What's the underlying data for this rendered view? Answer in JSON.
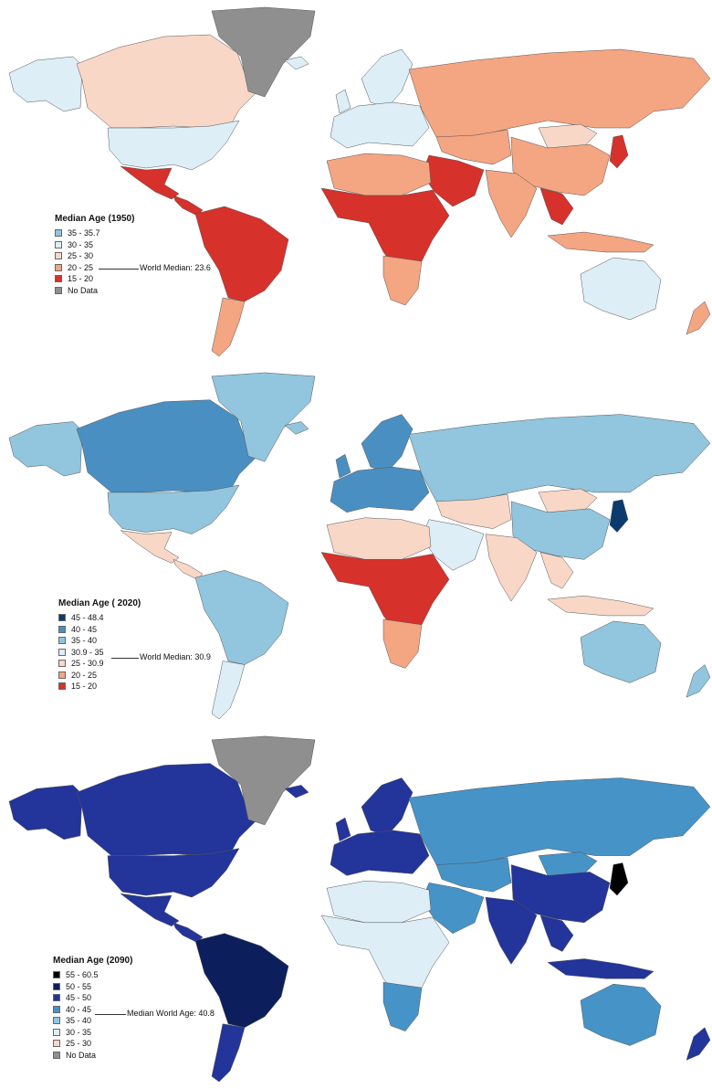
{
  "maps": [
    {
      "legend_title": "Median Age (1950)",
      "median_note": "World Median: 23.6",
      "legend": [
        {
          "label": "35 - 35.7",
          "color": "#92c5de"
        },
        {
          "label": "30 - 35",
          "color": "#ddeef7"
        },
        {
          "label": "25 - 30",
          "color": "#f8d7c7"
        },
        {
          "label": "20 - 25",
          "color": "#f4a582"
        },
        {
          "label": "15 - 20",
          "color": "#d6312b"
        },
        {
          "label": "No Data",
          "color": "#8f8f8f"
        }
      ],
      "region_colors": {
        "north_america": "#f8d7c7",
        "usa": "#ddeef7",
        "alaska": "#ddeef7",
        "greenland": "#8f8f8f",
        "mexico": "#d6312b",
        "central_america": "#d6312b",
        "south_america": "#d6312b",
        "southern_cone": "#f4a582",
        "europe": "#ddeef7",
        "scandinavia": "#ddeef7",
        "russia": "#f4a582",
        "north_africa": "#f4a582",
        "subsaharan_africa": "#d6312b",
        "southern_africa": "#f4a582",
        "middle_east": "#d6312b",
        "central_asia": "#f4a582",
        "south_asia": "#f4a582",
        "china": "#f4a582",
        "mongolia": "#f8d7c7",
        "japan": "#d6312b",
        "southeast_asia": "#d6312b",
        "indonesia": "#f4a582",
        "australia": "#ddeef7",
        "new_zealand": "#f4a582",
        "iceland": "#ddeef7",
        "uk": "#ddeef7"
      }
    },
    {
      "legend_title": "Median Age ( 2020)",
      "median_note": "World Median: 30.9",
      "legend": [
        {
          "label": "45 - 48.4",
          "color": "#0b3a6e"
        },
        {
          "label": "40 - 45",
          "color": "#4a8fc2"
        },
        {
          "label": "35 - 40",
          "color": "#92c5de"
        },
        {
          "label": "30.9 - 35",
          "color": "#ddeef7"
        },
        {
          "label": "25 - 30.9",
          "color": "#f8d7c7"
        },
        {
          "label": "20 - 25",
          "color": "#f4a582"
        },
        {
          "label": "15 - 20",
          "color": "#d6312b"
        }
      ],
      "region_colors": {
        "north_america": "#4a8fc2",
        "usa": "#92c5de",
        "alaska": "#92c5de",
        "greenland": "#92c5de",
        "mexico": "#f8d7c7",
        "central_america": "#f8d7c7",
        "south_america": "#92c5de",
        "southern_cone": "#ddeef7",
        "europe": "#4a8fc2",
        "scandinavia": "#4a8fc2",
        "russia": "#92c5de",
        "north_africa": "#f8d7c7",
        "subsaharan_africa": "#d6312b",
        "southern_africa": "#f4a582",
        "middle_east": "#ddeef7",
        "central_asia": "#f8d7c7",
        "south_asia": "#f8d7c7",
        "china": "#92c5de",
        "mongolia": "#f8d7c7",
        "japan": "#0b3a6e",
        "southeast_asia": "#f8d7c7",
        "indonesia": "#f8d7c7",
        "australia": "#92c5de",
        "new_zealand": "#92c5de",
        "iceland": "#92c5de",
        "uk": "#4a8fc2"
      }
    },
    {
      "legend_title": "Median Age (2090)",
      "median_note": "Median World Age: 40.8",
      "legend": [
        {
          "label": "55 - 60.5",
          "color": "#000000"
        },
        {
          "label": "50 - 55",
          "color": "#0c1f5c"
        },
        {
          "label": "45 - 50",
          "color": "#23349a"
        },
        {
          "label": "40 - 45",
          "color": "#4693c8"
        },
        {
          "label": "35 - 40",
          "color": "#92c5de"
        },
        {
          "label": "30 - 35",
          "color": "#ddeef7"
        },
        {
          "label": "25 - 30",
          "color": "#f8d7c7"
        },
        {
          "label": "No Data",
          "color": "#8f8f8f"
        }
      ],
      "region_colors": {
        "north_america": "#23349a",
        "usa": "#23349a",
        "alaska": "#23349a",
        "greenland": "#8f8f8f",
        "mexico": "#23349a",
        "central_america": "#23349a",
        "south_america": "#0c1f5c",
        "southern_cone": "#23349a",
        "europe": "#23349a",
        "scandinavia": "#23349a",
        "russia": "#4693c8",
        "north_africa": "#ddeef7",
        "subsaharan_africa": "#ddeef7",
        "southern_africa": "#4693c8",
        "middle_east": "#4693c8",
        "central_asia": "#4693c8",
        "south_asia": "#23349a",
        "china": "#23349a",
        "mongolia": "#4693c8",
        "japan": "#000000",
        "southeast_asia": "#23349a",
        "indonesia": "#23349a",
        "australia": "#4693c8",
        "new_zealand": "#23349a",
        "iceland": "#23349a",
        "uk": "#23349a"
      }
    }
  ]
}
